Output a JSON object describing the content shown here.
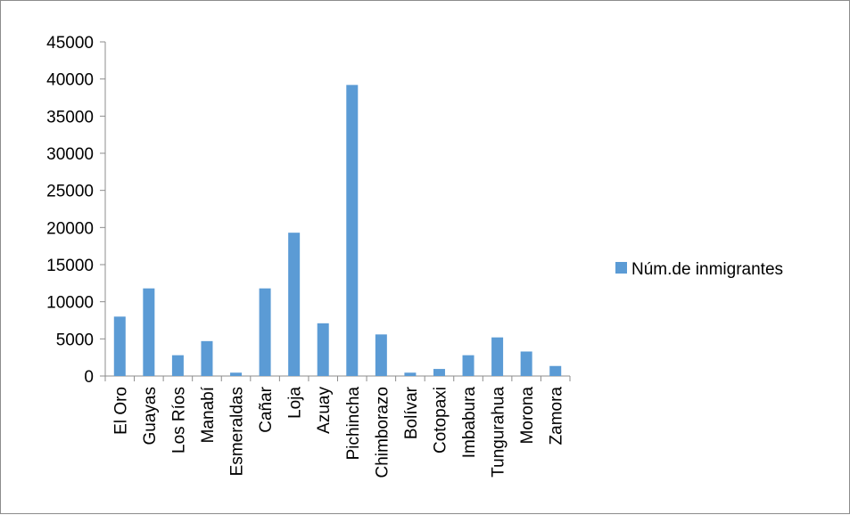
{
  "chart_data": {
    "type": "bar",
    "title": "",
    "xlabel": "",
    "ylabel": "",
    "categories": [
      "El Oro",
      "Guayas",
      "Los Ríos",
      "Manabí",
      "Esmeraldas",
      "Cañar",
      "Loja",
      "Azuay",
      "Pichincha",
      "Chimborazo",
      "Bolívar",
      "Cotopaxi",
      "Imbabura",
      "Tungurahua",
      "Morona",
      "Zamora"
    ],
    "series": [
      {
        "name": "Núm.de inmigrantes",
        "color": "#5b9bd5",
        "values": [
          8000,
          11800,
          2800,
          4700,
          450,
          11800,
          19300,
          7100,
          39200,
          5600,
          450,
          950,
          2800,
          5200,
          3300,
          1350
        ]
      }
    ],
    "yticks": [
      "0",
      "5000",
      "10000",
      "15000",
      "20000",
      "25000",
      "30000",
      "35000",
      "40000",
      "45000"
    ],
    "ylim": [
      0,
      45000
    ],
    "grid": false,
    "legend_position": "right"
  }
}
